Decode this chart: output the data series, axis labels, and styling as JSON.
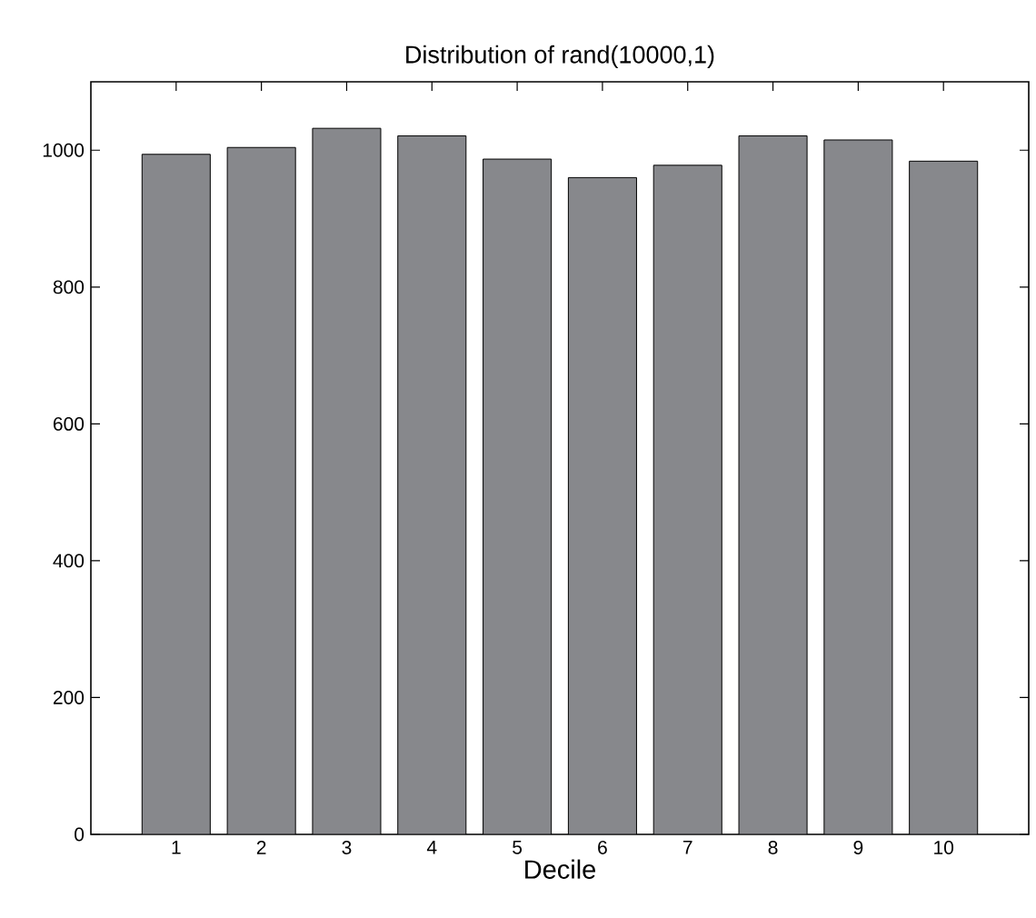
{
  "chart_data": {
    "type": "bar",
    "title": "Distribution of rand(10000,1)",
    "xlabel": "Decile",
    "categories": [
      "1",
      "2",
      "3",
      "4",
      "5",
      "6",
      "7",
      "8",
      "9",
      "10"
    ],
    "values": [
      994,
      1004,
      1032,
      1021,
      987,
      960,
      978,
      1021,
      1015,
      984
    ],
    "color": "#87888c",
    "ylim": [
      0,
      1100
    ],
    "yticks": [
      0,
      200,
      400,
      600,
      800,
      1000
    ],
    "grid": false
  }
}
